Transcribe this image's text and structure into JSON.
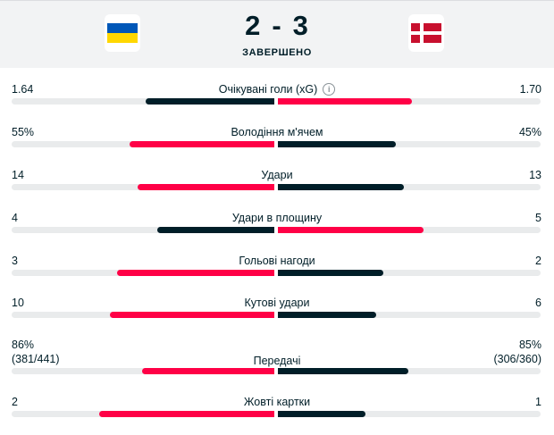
{
  "colors": {
    "highlight": "#ff0046",
    "dark": "#001e28",
    "track": "#e9ebec",
    "ukraine_blue": "#0057b8",
    "ukraine_yellow": "#ffd700",
    "denmark_red": "#c8102e"
  },
  "match": {
    "home_score": "2",
    "separator": "-",
    "away_score": "3",
    "status": "ЗАВЕРШЕНО"
  },
  "stats": [
    {
      "name": "Очікувані голи (xG)",
      "home": "1.64",
      "away": "1.70",
      "home_share": 0.491,
      "away_share": 0.509,
      "home_fill": "dark",
      "away_fill": "highlight",
      "info": true
    },
    {
      "name": "Володіння м'ячем",
      "home": "55%",
      "away": "45%",
      "home_share": 0.55,
      "away_share": 0.45,
      "home_fill": "highlight",
      "away_fill": "dark"
    },
    {
      "name": "Удари",
      "home": "14",
      "away": "13",
      "home_share": 0.519,
      "away_share": 0.481,
      "home_fill": "highlight",
      "away_fill": "dark"
    },
    {
      "name": "Удари в площину",
      "home": "4",
      "away": "5",
      "home_share": 0.444,
      "away_share": 0.556,
      "home_fill": "dark",
      "away_fill": "highlight"
    },
    {
      "name": "Гольові нагоди",
      "home": "3",
      "away": "2",
      "home_share": 0.6,
      "away_share": 0.4,
      "home_fill": "highlight",
      "away_fill": "dark"
    },
    {
      "name": "Кутові удари",
      "home": "10",
      "away": "6",
      "home_share": 0.625,
      "away_share": 0.375,
      "home_fill": "highlight",
      "away_fill": "dark"
    },
    {
      "name": "Передачі",
      "home": "86%",
      "away": "85%",
      "home_sub": "(381/441)",
      "away_sub": "(306/360)",
      "home_share": 0.503,
      "away_share": 0.497,
      "home_fill": "highlight",
      "away_fill": "dark"
    },
    {
      "name": "Жовті картки",
      "home": "2",
      "away": "1",
      "home_share": 0.667,
      "away_share": 0.333,
      "home_fill": "highlight",
      "away_fill": "dark"
    }
  ]
}
